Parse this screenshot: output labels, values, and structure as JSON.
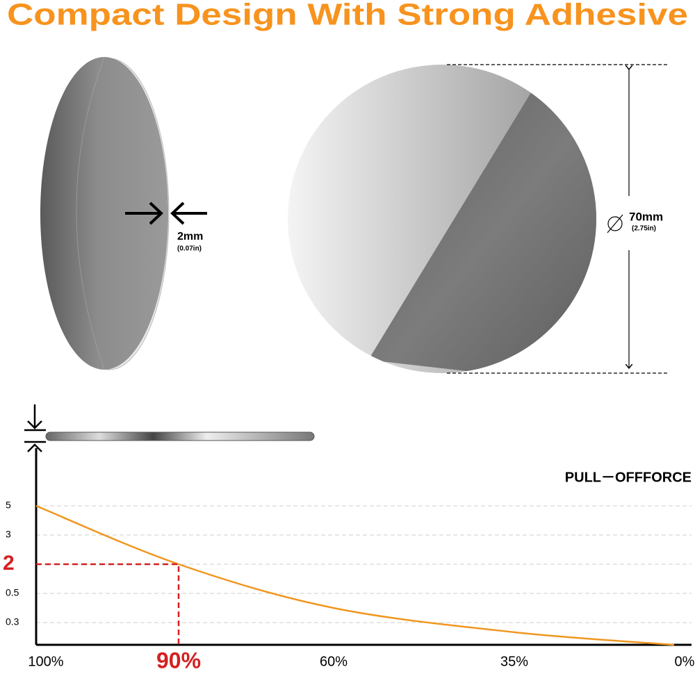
{
  "header": {
    "title": "Compact Design With Strong Adhesive"
  },
  "thickness": {
    "label": "2mm",
    "sublabel": "(0.07in)"
  },
  "diameter": {
    "label": "70mm",
    "sublabel": "(2.75in)"
  },
  "chart_data": {
    "type": "line",
    "title": "PULL－OFFFORCE",
    "categories": [
      "100%",
      "90%",
      "60%",
      "35%",
      "0%"
    ],
    "series": [
      {
        "name": null,
        "color": "#f0961e",
        "values": [
          5,
          2,
          0.4,
          0.17,
          0
        ]
      }
    ],
    "ylim": [
      0,
      5
    ],
    "yticks": [
      5,
      3,
      2,
      0.5,
      0.3
    ],
    "grid": true,
    "highlight_index": 1,
    "highlight_color": "#d42020"
  }
}
